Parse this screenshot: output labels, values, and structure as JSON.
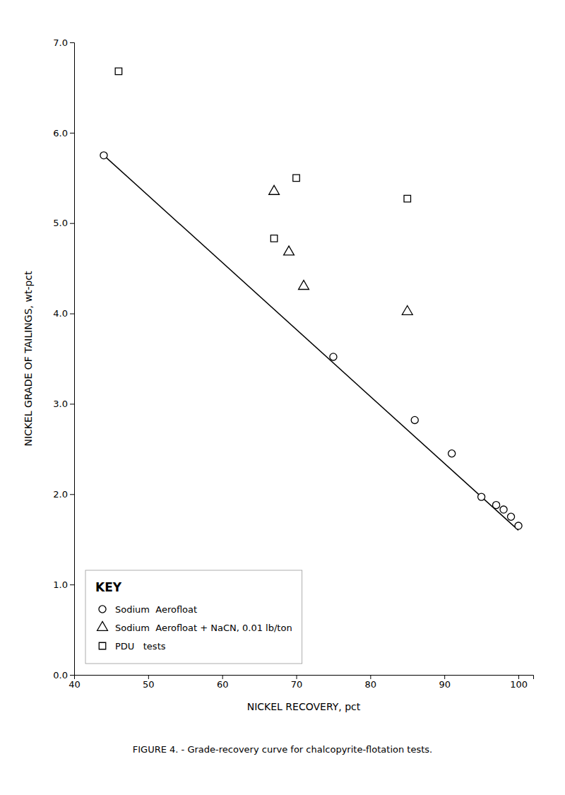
{
  "chart_data": {
    "type": "scatter",
    "title": "FIGURE 4. - Grade-recovery curve for chalcopyrite-flotation tests.",
    "x_label": "NICKEL RECOVERY, pct",
    "y_label": "NICKEL GRADE OF TAILINGS, wt-pct",
    "xlim": [
      40,
      102
    ],
    "ylim": [
      0.0,
      7.0
    ],
    "xticks": [
      40,
      50,
      60,
      70,
      80,
      90,
      100
    ],
    "yticks": [
      {
        "value": 0.0,
        "label": "0.0"
      },
      {
        "value": 1.0,
        "label": "1.0"
      },
      {
        "value": 2.0,
        "label": "2.0"
      },
      {
        "value": 3.0,
        "label": "3.0"
      },
      {
        "value": 4.0,
        "label": "4.0"
      },
      {
        "value": 5.0,
        "label": "5.0"
      },
      {
        "value": 6.0,
        "label": "6.0"
      },
      {
        "value": 7.0,
        "label": "7.0"
      }
    ],
    "grid": false,
    "legend": "lower left",
    "legend_title": "KEY",
    "series": [
      {
        "type": "line",
        "line_style": "solid",
        "color": "#000000",
        "x": [
          44,
          100
        ],
        "values": [
          5.75,
          1.6
        ]
      },
      {
        "name": "Sodium  Aerofloat",
        "type": "scatter",
        "marker": "circle",
        "color": "#000000",
        "x": [
          44,
          75,
          86,
          91,
          95,
          97,
          98,
          99,
          100
        ],
        "values": [
          5.75,
          3.52,
          2.82,
          2.45,
          1.97,
          1.88,
          1.83,
          1.75,
          1.65
        ]
      },
      {
        "name": "Sodium  Aerofloat + NaCN, 0.01 lb/ton",
        "type": "scatter",
        "marker": "triangle",
        "color": "#000000",
        "x": [
          67,
          69,
          71,
          85
        ],
        "values": [
          5.35,
          4.68,
          4.3,
          4.02
        ]
      },
      {
        "name": "PDU   tests",
        "type": "scatter",
        "marker": "square",
        "color": "#000000",
        "x": [
          46,
          67,
          70,
          85
        ],
        "values": [
          6.68,
          4.83,
          5.5,
          5.27
        ]
      }
    ]
  }
}
